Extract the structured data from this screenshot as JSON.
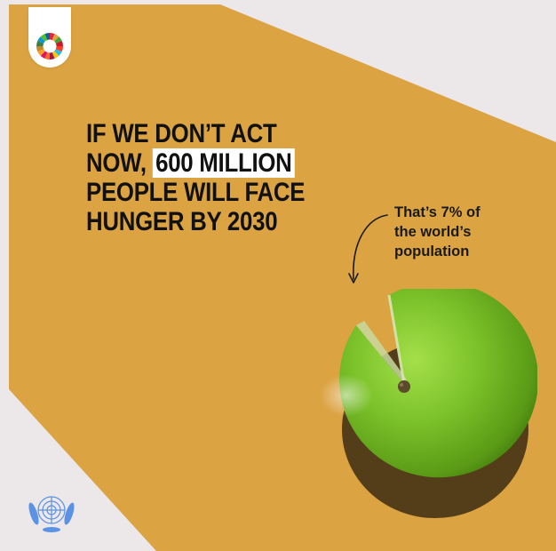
{
  "colors": {
    "background": "#ece7e8",
    "panel": "#dba341",
    "text": "#111111",
    "highlight": "#ffffff",
    "apple": "#7cc22a",
    "un_blue": "#5b92e5"
  },
  "sdg_badge": {
    "icon": "sdg-color-wheel-icon"
  },
  "headline": {
    "line1": "IF WE DON’T ACT",
    "line2_prefix": "NOW, ",
    "line2_highlight": "600 MILLION",
    "line3": "PEOPLE WILL FACE",
    "line4": "HUNGER BY 2030"
  },
  "annotation": {
    "line1": "That’s 7% of",
    "line2": "the world’s",
    "line3": "population"
  },
  "apple": {
    "icon": "apple-with-slice-missing-icon",
    "missing_share_percent": 7
  },
  "footer": {
    "icon": "un-emblem-icon"
  }
}
